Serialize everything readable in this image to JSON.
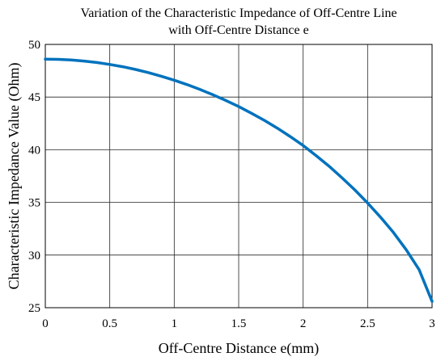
{
  "chart_data": {
    "type": "line",
    "title_lines": [
      "Variation of the Characteristic Impedance of Off-Centre Line",
      "with Off-Centre Distance e"
    ],
    "xlabel": "Off-Centre Distance e(mm)",
    "ylabel": "Characteristic Impedance Value (Ohm)",
    "xlim": [
      0,
      3
    ],
    "ylim": [
      25,
      50
    ],
    "xticks": [
      "0",
      "0.5",
      "1",
      "1.5",
      "2",
      "2.5",
      "3"
    ],
    "yticks": [
      "25",
      "30",
      "35",
      "40",
      "45",
      "50"
    ],
    "grid": true,
    "series": [
      {
        "color": "#0072BD",
        "x": [
          0,
          0.1,
          0.2,
          0.3,
          0.4,
          0.5,
          0.6,
          0.7,
          0.8,
          0.9,
          1.0,
          1.1,
          1.2,
          1.3,
          1.4,
          1.5,
          1.6,
          1.7,
          1.8,
          1.9,
          2.0,
          2.1,
          2.2,
          2.3,
          2.4,
          2.5,
          2.6,
          2.7,
          2.8,
          2.9,
          3.0
        ],
        "y": [
          48.6,
          48.58,
          48.52,
          48.42,
          48.28,
          48.1,
          47.88,
          47.62,
          47.32,
          46.98,
          46.6,
          46.18,
          45.72,
          45.22,
          44.68,
          44.1,
          43.46,
          42.78,
          42.05,
          41.25,
          40.4,
          39.45,
          38.45,
          37.35,
          36.2,
          34.95,
          33.6,
          32.15,
          30.5,
          28.6,
          25.6
        ]
      }
    ]
  }
}
